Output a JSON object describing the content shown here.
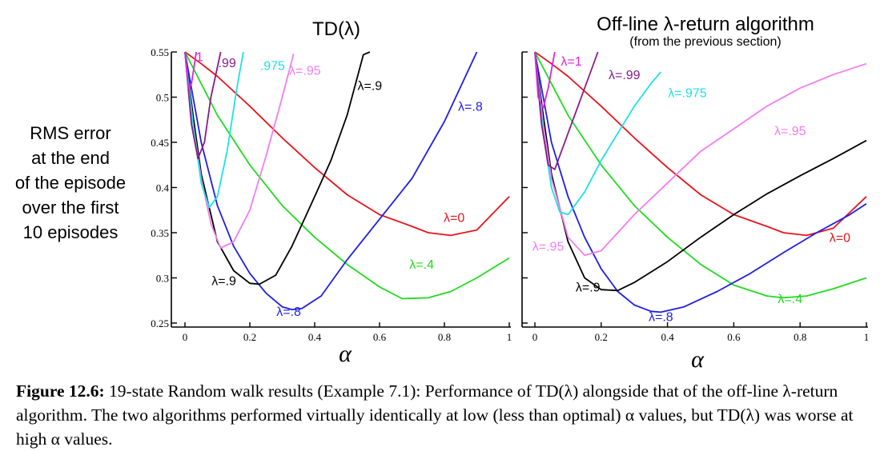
{
  "figure": {
    "ylabel_lines": [
      "RMS error",
      "at the end",
      "of the episode",
      "over the first",
      "10 episodes"
    ]
  },
  "caption": {
    "label": "Figure 12.6:",
    "text": " 19-state Random walk results (Example 7.1): Performance of TD(λ) alongside that of the off-line λ-return algorithm. The two algorithms performed virtually identically at low (less than optimal) α values, but TD(λ) was worse at high α values."
  },
  "chart_data": [
    {
      "type": "line",
      "title": "TD(λ)",
      "subtitle": "",
      "xlabel": "α",
      "xlim": [
        0,
        1
      ],
      "ylim": [
        0.25,
        0.55
      ],
      "xticks": [
        "0",
        "0.2",
        "0.4",
        "0.6",
        "0.8",
        "1"
      ],
      "yticks": [
        "0.25",
        "0.3",
        "0.35",
        "0.4",
        "0.45",
        "0.5",
        "0.55"
      ],
      "series": [
        {
          "name": "λ=0",
          "color": "#e8141b",
          "points": [
            [
              0,
              0.55
            ],
            [
              0.05,
              0.537
            ],
            [
              0.1,
              0.523
            ],
            [
              0.2,
              0.49
            ],
            [
              0.3,
              0.455
            ],
            [
              0.4,
              0.422
            ],
            [
              0.5,
              0.392
            ],
            [
              0.6,
              0.37
            ],
            [
              0.7,
              0.357
            ],
            [
              0.75,
              0.35
            ],
            [
              0.82,
              0.347
            ],
            [
              0.9,
              0.353
            ],
            [
              1.0,
              0.39
            ]
          ]
        },
        {
          "name": "λ=.4",
          "color": "#1fdc1f",
          "points": [
            [
              0,
              0.55
            ],
            [
              0.05,
              0.515
            ],
            [
              0.1,
              0.48
            ],
            [
              0.2,
              0.425
            ],
            [
              0.3,
              0.38
            ],
            [
              0.4,
              0.345
            ],
            [
              0.5,
              0.315
            ],
            [
              0.6,
              0.29
            ],
            [
              0.67,
              0.277
            ],
            [
              0.75,
              0.278
            ],
            [
              0.82,
              0.285
            ],
            [
              0.9,
              0.3
            ],
            [
              1.0,
              0.322
            ]
          ]
        },
        {
          "name": "λ=.8",
          "color": "#1e1ee6",
          "points": [
            [
              0,
              0.55
            ],
            [
              0.025,
              0.5
            ],
            [
              0.05,
              0.45
            ],
            [
              0.1,
              0.38
            ],
            [
              0.15,
              0.335
            ],
            [
              0.2,
              0.305
            ],
            [
              0.25,
              0.283
            ],
            [
              0.3,
              0.268
            ],
            [
              0.33,
              0.265
            ],
            [
              0.36,
              0.266
            ],
            [
              0.42,
              0.28
            ],
            [
              0.5,
              0.32
            ],
            [
              0.6,
              0.365
            ],
            [
              0.7,
              0.41
            ],
            [
              0.8,
              0.473
            ],
            [
              0.9,
              0.555
            ]
          ]
        },
        {
          "name": "λ=.9",
          "color": "#000000",
          "points": [
            [
              0,
              0.55
            ],
            [
              0.025,
              0.48
            ],
            [
              0.05,
              0.415
            ],
            [
              0.1,
              0.34
            ],
            [
              0.15,
              0.308
            ],
            [
              0.2,
              0.294
            ],
            [
              0.23,
              0.293
            ],
            [
              0.28,
              0.303
            ],
            [
              0.33,
              0.335
            ],
            [
              0.4,
              0.39
            ],
            [
              0.45,
              0.43
            ],
            [
              0.5,
              0.48
            ],
            [
              0.55,
              0.547
            ],
            [
              0.57,
              0.55
            ]
          ]
        },
        {
          "name": "λ=.95",
          "color": "#f37cf3",
          "points": [
            [
              0,
              0.55
            ],
            [
              0.025,
              0.47
            ],
            [
              0.05,
              0.41
            ],
            [
              0.08,
              0.36
            ],
            [
              0.11,
              0.333
            ],
            [
              0.15,
              0.34
            ],
            [
              0.2,
              0.375
            ],
            [
              0.25,
              0.435
            ],
            [
              0.3,
              0.5
            ],
            [
              0.335,
              0.548
            ]
          ]
        },
        {
          "name": ".975",
          "color": "#1ee0e8",
          "points": [
            [
              0,
              0.55
            ],
            [
              0.025,
              0.47
            ],
            [
              0.05,
              0.405
            ],
            [
              0.075,
              0.378
            ],
            [
              0.1,
              0.39
            ],
            [
              0.13,
              0.44
            ],
            [
              0.16,
              0.51
            ],
            [
              0.18,
              0.552
            ]
          ]
        },
        {
          "name": ".99",
          "color": "#8b1a8b",
          "points": [
            [
              0,
              0.55
            ],
            [
              0.02,
              0.47
            ],
            [
              0.04,
              0.432
            ],
            [
              0.06,
              0.45
            ],
            [
              0.08,
              0.5
            ],
            [
              0.11,
              0.552
            ]
          ]
        },
        {
          "name": "1",
          "color": "#e020e0",
          "points": [
            [
              0,
              0.55
            ],
            [
              0.01,
              0.51
            ],
            [
              0.02,
              0.515
            ],
            [
              0.035,
              0.552
            ]
          ]
        }
      ],
      "annotations": [
        "λ=.9",
        "λ=.8",
        "λ=.4",
        "λ=0",
        "λ=.95",
        "λ=.9",
        "λ=.8",
        ".975",
        ".99",
        "1"
      ]
    },
    {
      "type": "line",
      "title": "Off-line λ-return algorithm",
      "subtitle": "(from the previous section)",
      "xlabel": "α",
      "xlim": [
        0,
        1
      ],
      "ylim": [
        0.25,
        0.55
      ],
      "xticks": [
        "0",
        "0.2",
        "0.4",
        "0.6",
        "0.8",
        "1"
      ],
      "yticks": [],
      "series": [
        {
          "name": "λ=0",
          "color": "#e8141b",
          "points": [
            [
              0,
              0.55
            ],
            [
              0.05,
              0.537
            ],
            [
              0.1,
              0.523
            ],
            [
              0.2,
              0.49
            ],
            [
              0.3,
              0.455
            ],
            [
              0.4,
              0.422
            ],
            [
              0.5,
              0.392
            ],
            [
              0.6,
              0.37
            ],
            [
              0.7,
              0.357
            ],
            [
              0.75,
              0.35
            ],
            [
              0.82,
              0.347
            ],
            [
              0.9,
              0.355
            ],
            [
              1.0,
              0.39
            ]
          ]
        },
        {
          "name": "λ=.4",
          "color": "#1fdc1f",
          "points": [
            [
              0,
              0.55
            ],
            [
              0.05,
              0.515
            ],
            [
              0.1,
              0.48
            ],
            [
              0.2,
              0.425
            ],
            [
              0.3,
              0.38
            ],
            [
              0.4,
              0.345
            ],
            [
              0.5,
              0.315
            ],
            [
              0.6,
              0.292
            ],
            [
              0.7,
              0.28
            ],
            [
              0.75,
              0.278
            ],
            [
              0.82,
              0.28
            ],
            [
              0.9,
              0.288
            ],
            [
              1.0,
              0.3
            ]
          ]
        },
        {
          "name": "λ=.8",
          "color": "#1e1ee6",
          "points": [
            [
              0,
              0.55
            ],
            [
              0.025,
              0.5
            ],
            [
              0.05,
              0.45
            ],
            [
              0.1,
              0.39
            ],
            [
              0.15,
              0.345
            ],
            [
              0.2,
              0.31
            ],
            [
              0.25,
              0.285
            ],
            [
              0.3,
              0.27
            ],
            [
              0.35,
              0.263
            ],
            [
              0.38,
              0.262
            ],
            [
              0.45,
              0.268
            ],
            [
              0.55,
              0.285
            ],
            [
              0.65,
              0.305
            ],
            [
              0.75,
              0.328
            ],
            [
              0.85,
              0.35
            ],
            [
              0.95,
              0.37
            ],
            [
              1.0,
              0.382
            ]
          ]
        },
        {
          "name": "λ=.9",
          "color": "#000000",
          "points": [
            [
              0,
              0.55
            ],
            [
              0.025,
              0.48
            ],
            [
              0.05,
              0.415
            ],
            [
              0.1,
              0.34
            ],
            [
              0.15,
              0.3
            ],
            [
              0.2,
              0.287
            ],
            [
              0.25,
              0.286
            ],
            [
              0.3,
              0.295
            ],
            [
              0.4,
              0.318
            ],
            [
              0.5,
              0.345
            ],
            [
              0.6,
              0.37
            ],
            [
              0.7,
              0.393
            ],
            [
              0.8,
              0.413
            ],
            [
              0.9,
              0.432
            ],
            [
              1.0,
              0.452
            ]
          ]
        },
        {
          "name": "λ=.95",
          "color": "#f37cf3",
          "points": [
            [
              0,
              0.55
            ],
            [
              0.025,
              0.47
            ],
            [
              0.05,
              0.41
            ],
            [
              0.1,
              0.345
            ],
            [
              0.15,
              0.325
            ],
            [
              0.2,
              0.33
            ],
            [
              0.3,
              0.37
            ],
            [
              0.4,
              0.405
            ],
            [
              0.5,
              0.44
            ],
            [
              0.6,
              0.465
            ],
            [
              0.7,
              0.49
            ],
            [
              0.8,
              0.51
            ],
            [
              0.9,
              0.525
            ],
            [
              1.0,
              0.537
            ]
          ]
        },
        {
          "name": "λ=.975",
          "color": "#1ee0e8",
          "points": [
            [
              0,
              0.55
            ],
            [
              0.025,
              0.46
            ],
            [
              0.05,
              0.4
            ],
            [
              0.075,
              0.373
            ],
            [
              0.1,
              0.37
            ],
            [
              0.15,
              0.395
            ],
            [
              0.2,
              0.43
            ],
            [
              0.25,
              0.46
            ],
            [
              0.3,
              0.49
            ],
            [
              0.35,
              0.515
            ],
            [
              0.38,
              0.528
            ]
          ]
        },
        {
          "name": "λ=.99",
          "color": "#8b1a8b",
          "points": [
            [
              0,
              0.55
            ],
            [
              0.02,
              0.47
            ],
            [
              0.04,
              0.425
            ],
            [
              0.06,
              0.42
            ],
            [
              0.08,
              0.44
            ],
            [
              0.1,
              0.46
            ],
            [
              0.14,
              0.5
            ],
            [
              0.19,
              0.55
            ]
          ]
        },
        {
          "name": "λ=1",
          "color": "#e020e0",
          "points": [
            [
              0,
              0.55
            ],
            [
              0.01,
              0.5
            ],
            [
              0.025,
              0.488
            ],
            [
              0.04,
              0.51
            ],
            [
              0.06,
              0.55
            ]
          ]
        }
      ],
      "annotations": [
        "λ=1",
        "λ=.99",
        "λ=.975",
        "λ=.95",
        "λ=0",
        "λ=.95",
        "λ=.9",
        "λ=.8",
        "λ=.4"
      ]
    }
  ]
}
